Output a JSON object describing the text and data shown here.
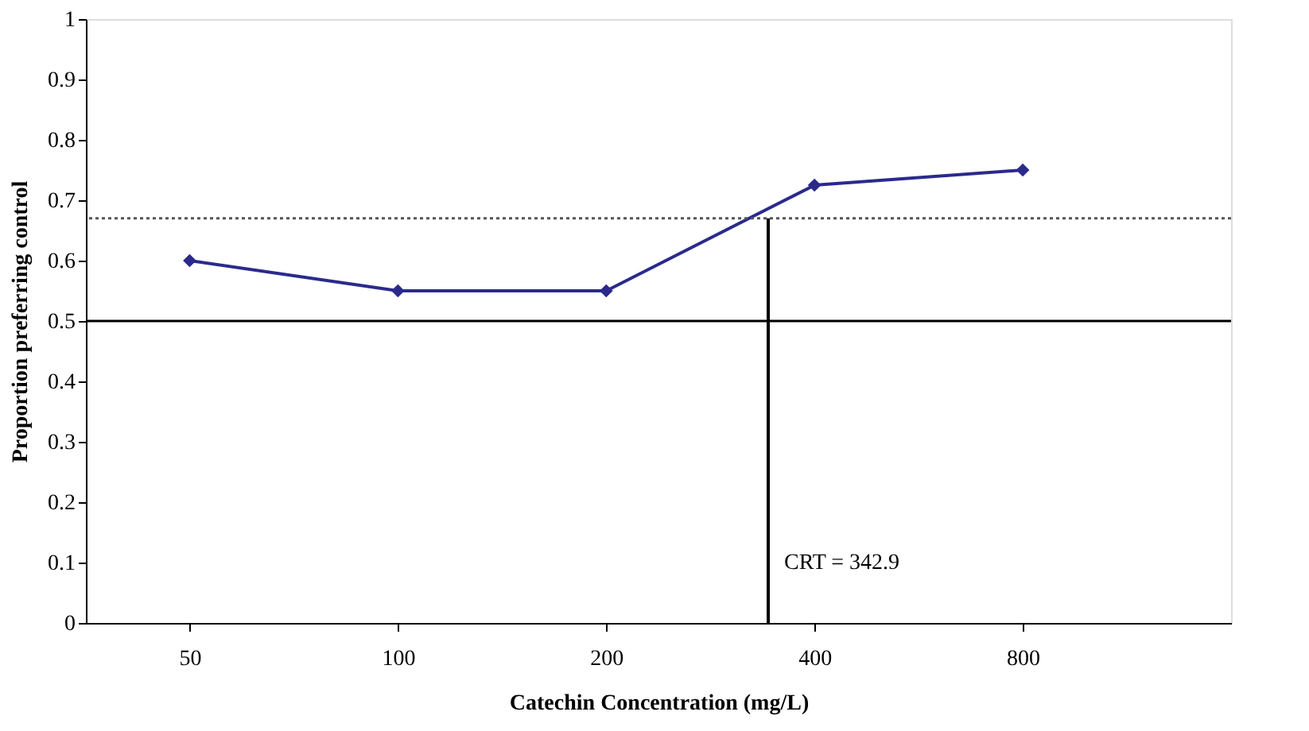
{
  "chart_data": {
    "type": "line",
    "xlabel": "Catechin Concentration (mg/L)",
    "ylabel": "Proportion preferring control",
    "x": [
      50,
      100,
      200,
      400,
      800
    ],
    "series": [
      {
        "color": "#2b2a8c",
        "values": [
          0.6,
          0.55,
          0.55,
          0.725,
          0.75
        ]
      }
    ],
    "log": "x",
    "xlim": [
      35.4,
      1600
    ],
    "xticks": [
      50,
      100,
      200,
      400,
      800
    ],
    "ylim": [
      0,
      1
    ],
    "yticks": [
      0,
      0.1,
      0.2,
      0.3,
      0.4,
      0.5,
      0.6,
      0.7,
      0.8,
      0.9,
      1
    ],
    "marker": "diamond",
    "line_style": "solid",
    "grid": false,
    "legend": false,
    "ref_lines": [
      {
        "axis": "y",
        "value": 0.5,
        "color": "#000000",
        "line_style": "solid"
      },
      {
        "axis": "y",
        "value": 0.67,
        "color": "#555555",
        "line_style": "dotted"
      },
      {
        "axis": "x",
        "value": 342.9,
        "label": "CRT = 342.9",
        "color": "#000000",
        "line_style": "solid"
      }
    ]
  }
}
